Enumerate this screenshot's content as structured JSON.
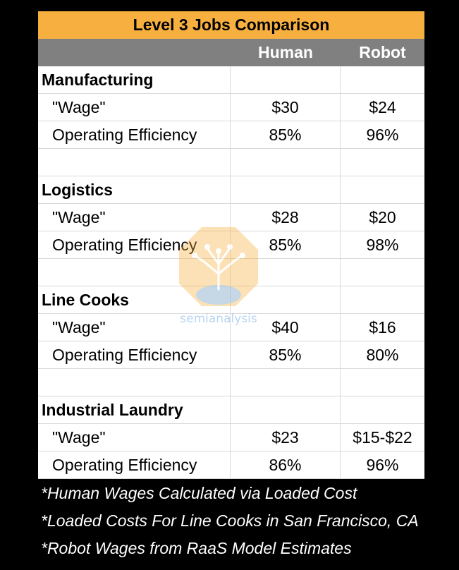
{
  "table": {
    "title": "Level 3 Jobs Comparison",
    "columns": [
      "",
      "Human",
      "Robot"
    ],
    "rows": [
      {
        "label": "Manufacturing",
        "human": "",
        "robot": "",
        "type": "category"
      },
      {
        "label": "\"Wage\"",
        "human": "$30",
        "robot": "$24",
        "type": "item"
      },
      {
        "label": "Operating Efficiency",
        "human": "85%",
        "robot": "96%",
        "type": "item"
      },
      {
        "label": "",
        "human": "",
        "robot": "",
        "type": "blank"
      },
      {
        "label": "Logistics",
        "human": "",
        "robot": "",
        "type": "category"
      },
      {
        "label": "\"Wage\"",
        "human": "$28",
        "robot": "$20",
        "type": "item"
      },
      {
        "label": "Operating Efficiency",
        "human": "85%",
        "robot": "98%",
        "type": "item"
      },
      {
        "label": "",
        "human": "",
        "robot": "",
        "type": "blank"
      },
      {
        "label": "Line Cooks",
        "human": "",
        "robot": "",
        "type": "category"
      },
      {
        "label": "\"Wage\"",
        "human": "$40",
        "robot": "$16",
        "type": "item"
      },
      {
        "label": "Operating Efficiency",
        "human": "85%",
        "robot": "80%",
        "type": "item"
      },
      {
        "label": "",
        "human": "",
        "robot": "",
        "type": "blank"
      },
      {
        "label": "Industrial Laundry",
        "human": "",
        "robot": "",
        "type": "category"
      },
      {
        "label": "\"Wage\"",
        "human": "$23",
        "robot": "$15-$22",
        "type": "item"
      },
      {
        "label": "Operating Efficiency",
        "human": "86%",
        "robot": "96%",
        "type": "item"
      }
    ]
  },
  "notes": [
    "*Human Wages Calculated via Loaded Cost",
    "*Loaded Costs For Line Cooks in San Francisco, CA",
    "*Robot Wages from RaaS Model Estimates"
  ],
  "watermark": {
    "text": "semianalysis",
    "icon": "circuit-tree-bulb-icon",
    "color": "#7fb4e6",
    "accent": "#f7b040"
  },
  "colors": {
    "title_bg": "#f7b040",
    "header_bg": "#808080",
    "page_bg": "#000000"
  }
}
